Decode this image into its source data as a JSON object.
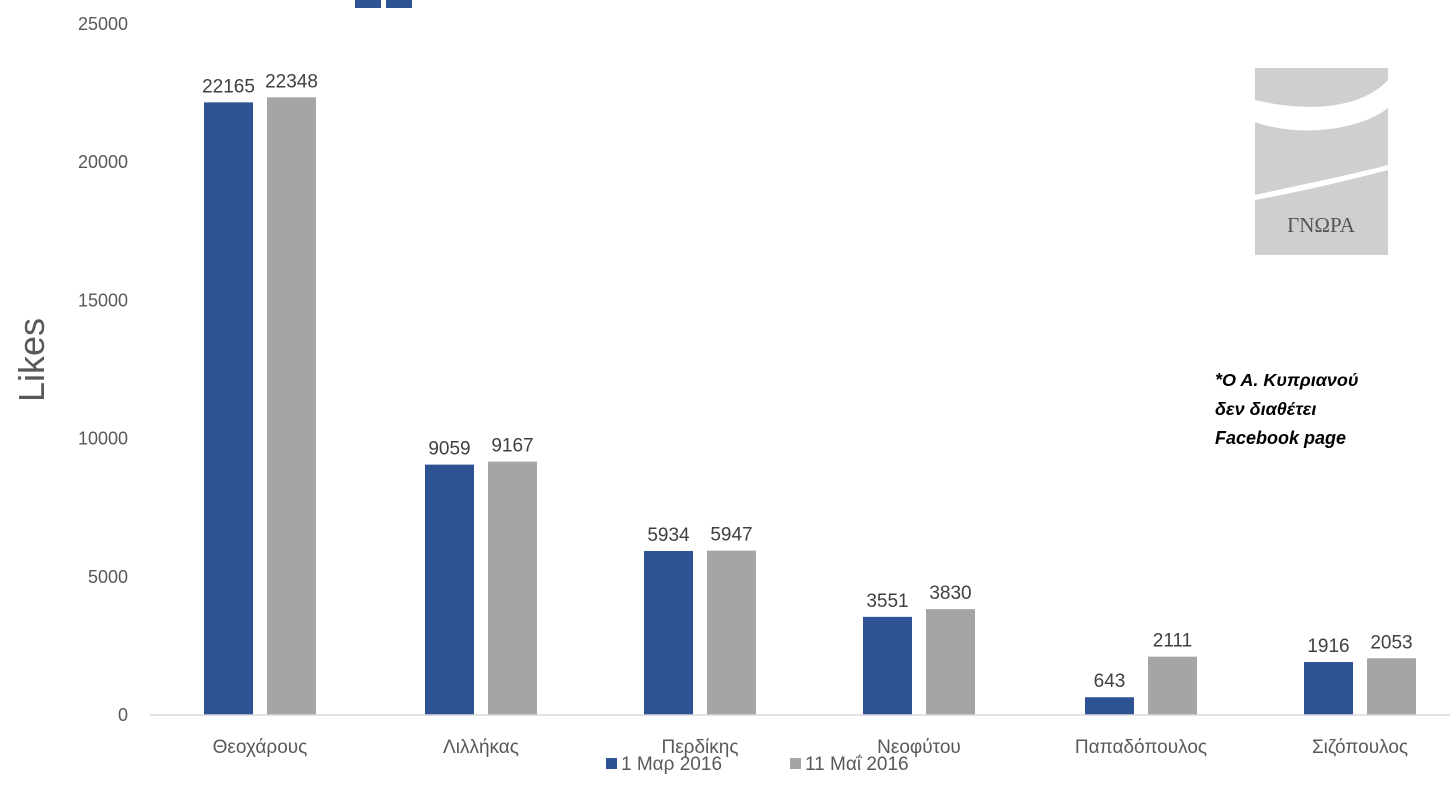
{
  "chart_data": {
    "type": "bar",
    "ylabel": "Likes",
    "ylim": [
      0,
      25000
    ],
    "yticks": [
      0,
      5000,
      10000,
      15000,
      20000,
      25000
    ],
    "categories": [
      "Θεοχάρους",
      "Λιλλήκας",
      "Περδίκης",
      "Νεοφύτου",
      "Παπαδόπουλος",
      "Σιζόπουλος"
    ],
    "series": [
      {
        "name": "1 Μαρ 2016",
        "color": "#2e5395",
        "values": [
          22165,
          9059,
          5934,
          3551,
          643,
          1916
        ]
      },
      {
        "name": "11 Μαΐ 2016",
        "color": "#a5a5a5",
        "values": [
          22348,
          9167,
          5947,
          3830,
          2111,
          2053
        ]
      }
    ],
    "legend": "bottom",
    "grid": false
  },
  "note": {
    "lines": [
      "*Ο Α. Κυπριανού",
      "δεν διαθέτει",
      "Facebook page"
    ]
  },
  "logo": {
    "text": "ΓΝΩΡΑ",
    "icon": "gnora-logo"
  }
}
